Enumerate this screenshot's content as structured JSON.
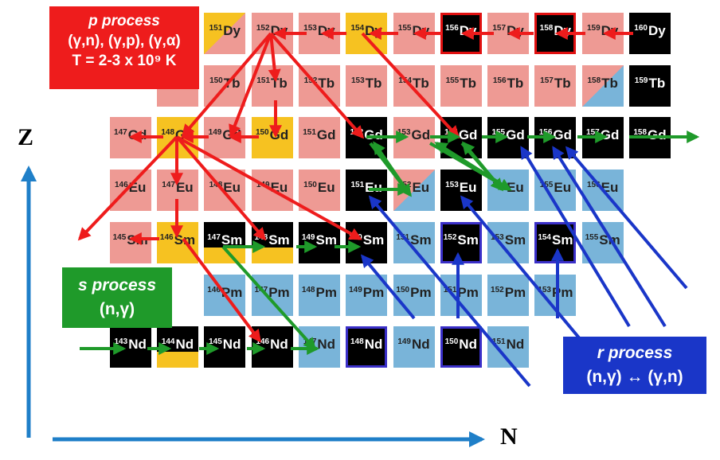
{
  "colors": {
    "pink": "#ee9a94",
    "yellow": "#f6c221",
    "blue": "#79b4d9",
    "black": "#000000",
    "red_arrow": "#ee1c1c",
    "green_arrow": "#1f9a2a",
    "blue_arrow": "#1a36c8",
    "axis": "#1f7fc8"
  },
  "nuclides": [
    {
      "mass": "160",
      "el": "Dy",
      "row": 0,
      "col": 10,
      "type": "black"
    },
    {
      "mass": "159",
      "el": "Dy",
      "row": 0,
      "col": 9,
      "type": "pink"
    },
    {
      "mass": "158",
      "el": "Dy",
      "row": 0,
      "col": 8,
      "type": "black",
      "outline": "red"
    },
    {
      "mass": "157",
      "el": "Dy",
      "row": 0,
      "col": 7,
      "type": "pink"
    },
    {
      "mass": "156",
      "el": "Dy",
      "row": 0,
      "col": 6,
      "type": "black",
      "outline": "red"
    },
    {
      "mass": "155",
      "el": "Dy",
      "row": 0,
      "col": 5,
      "type": "pink"
    },
    {
      "mass": "154",
      "el": "Dy",
      "row": 0,
      "col": 4,
      "type": "yellow"
    },
    {
      "mass": "153",
      "el": "Dy",
      "row": 0,
      "col": 3,
      "type": "pink"
    },
    {
      "mass": "152",
      "el": "Dy",
      "row": 0,
      "col": 2,
      "type": "pink"
    },
    {
      "mass": "151",
      "el": "Dy",
      "row": 0,
      "col": 1,
      "type": "split-yp"
    },
    {
      "mass": "159",
      "el": "Tb",
      "row": 1,
      "col": 10,
      "type": "black"
    },
    {
      "mass": "158",
      "el": "Tb",
      "row": 1,
      "col": 9,
      "type": "split-pb"
    },
    {
      "mass": "157",
      "el": "Tb",
      "row": 1,
      "col": 8,
      "type": "pink"
    },
    {
      "mass": "156",
      "el": "Tb",
      "row": 1,
      "col": 7,
      "type": "pink"
    },
    {
      "mass": "155",
      "el": "Tb",
      "row": 1,
      "col": 6,
      "type": "pink"
    },
    {
      "mass": "154",
      "el": "Tb",
      "row": 1,
      "col": 5,
      "type": "pink"
    },
    {
      "mass": "153",
      "el": "Tb",
      "row": 1,
      "col": 4,
      "type": "pink"
    },
    {
      "mass": "152",
      "el": "Tb",
      "row": 1,
      "col": 3,
      "type": "pink"
    },
    {
      "mass": "151",
      "el": "Tb",
      "row": 1,
      "col": 2,
      "type": "pink"
    },
    {
      "mass": "150",
      "el": "Tb",
      "row": 1,
      "col": 1,
      "type": "pink"
    },
    {
      "mass": "",
      "el": "",
      "row": 1,
      "col": 0,
      "type": "pink"
    },
    {
      "mass": "158",
      "el": "Gd",
      "row": 2,
      "col": 10,
      "type": "black"
    },
    {
      "mass": "157",
      "el": "Gd",
      "row": 2,
      "col": 9,
      "type": "black"
    },
    {
      "mass": "156",
      "el": "Gd",
      "row": 2,
      "col": 8,
      "type": "black"
    },
    {
      "mass": "155",
      "el": "Gd",
      "row": 2,
      "col": 7,
      "type": "black"
    },
    {
      "mass": "154",
      "el": "Gd",
      "row": 2,
      "col": 6,
      "type": "black"
    },
    {
      "mass": "153",
      "el": "Gd",
      "row": 2,
      "col": 5,
      "type": "pink"
    },
    {
      "mass": "152",
      "el": "Gd",
      "row": 2,
      "col": 4,
      "type": "black"
    },
    {
      "mass": "151",
      "el": "Gd",
      "row": 2,
      "col": 3,
      "type": "pink"
    },
    {
      "mass": "150",
      "el": "Gd",
      "row": 2,
      "col": 2,
      "type": "yellow"
    },
    {
      "mass": "149",
      "el": "Gd",
      "row": 2,
      "col": 1,
      "type": "pink"
    },
    {
      "mass": "148",
      "el": "Gd",
      "row": 2,
      "col": 0,
      "type": "yellow"
    },
    {
      "mass": "147",
      "el": "Gd",
      "row": 2,
      "col": -1,
      "type": "pink"
    },
    {
      "mass": "156",
      "el": "Eu",
      "row": 3,
      "col": 9,
      "type": "blue"
    },
    {
      "mass": "155",
      "el": "Eu",
      "row": 3,
      "col": 8,
      "type": "blue"
    },
    {
      "mass": "154",
      "el": "Eu",
      "row": 3,
      "col": 7,
      "type": "blue"
    },
    {
      "mass": "153",
      "el": "Eu",
      "row": 3,
      "col": 6,
      "type": "black"
    },
    {
      "mass": "152",
      "el": "Eu",
      "row": 3,
      "col": 5,
      "type": "split-pb"
    },
    {
      "mass": "151",
      "el": "Eu",
      "row": 3,
      "col": 4,
      "type": "black"
    },
    {
      "mass": "150",
      "el": "Eu",
      "row": 3,
      "col": 3,
      "type": "pink"
    },
    {
      "mass": "149",
      "el": "Eu",
      "row": 3,
      "col": 2,
      "type": "pink"
    },
    {
      "mass": "148",
      "el": "Eu",
      "row": 3,
      "col": 1,
      "type": "pink"
    },
    {
      "mass": "147",
      "el": "Eu",
      "row": 3,
      "col": 0,
      "type": "pink"
    },
    {
      "mass": "146",
      "el": "Eu",
      "row": 3,
      "col": -1,
      "type": "pink"
    },
    {
      "mass": "155",
      "el": "Sm",
      "row": 4,
      "col": 9,
      "type": "blue"
    },
    {
      "mass": "154",
      "el": "Sm",
      "row": 4,
      "col": 8,
      "type": "black",
      "outline": "blue"
    },
    {
      "mass": "153",
      "el": "Sm",
      "row": 4,
      "col": 7,
      "type": "blue"
    },
    {
      "mass": "152",
      "el": "Sm",
      "row": 4,
      "col": 6,
      "type": "black",
      "outline": "blue"
    },
    {
      "mass": "151",
      "el": "Sm",
      "row": 4,
      "col": 5,
      "type": "blue"
    },
    {
      "mass": "150",
      "el": "Sm",
      "row": 4,
      "col": 4,
      "type": "black"
    },
    {
      "mass": "149",
      "el": "Sm",
      "row": 4,
      "col": 3,
      "type": "black"
    },
    {
      "mass": "148",
      "el": "Sm",
      "row": 4,
      "col": 2,
      "type": "black-yellow"
    },
    {
      "mass": "147",
      "el": "Sm",
      "row": 4,
      "col": 1,
      "type": "black-yellow"
    },
    {
      "mass": "146",
      "el": "Sm",
      "row": 4,
      "col": 0,
      "type": "yellow"
    },
    {
      "mass": "145",
      "el": "Sm",
      "row": 4,
      "col": -1,
      "type": "pink"
    },
    {
      "mass": "153",
      "el": "Pm",
      "row": 5,
      "col": 8,
      "type": "blue"
    },
    {
      "mass": "152",
      "el": "Pm",
      "row": 5,
      "col": 7,
      "type": "blue"
    },
    {
      "mass": "151",
      "el": "Pm",
      "row": 5,
      "col": 6,
      "type": "blue"
    },
    {
      "mass": "150",
      "el": "Pm",
      "row": 5,
      "col": 5,
      "type": "blue"
    },
    {
      "mass": "149",
      "el": "Pm",
      "row": 5,
      "col": 4,
      "type": "blue"
    },
    {
      "mass": "148",
      "el": "Pm",
      "row": 5,
      "col": 3,
      "type": "blue"
    },
    {
      "mass": "147",
      "el": "Pm",
      "row": 5,
      "col": 2,
      "type": "blue"
    },
    {
      "mass": "146",
      "el": "Pm",
      "row": 5,
      "col": 1,
      "type": "blue"
    },
    {
      "mass": "151",
      "el": "Nd",
      "row": 6,
      "col": 7,
      "type": "blue"
    },
    {
      "mass": "150",
      "el": "Nd",
      "row": 6,
      "col": 6,
      "type": "black",
      "outline": "blue"
    },
    {
      "mass": "149",
      "el": "Nd",
      "row": 6,
      "col": 5,
      "type": "blue"
    },
    {
      "mass": "148",
      "el": "Nd",
      "row": 6,
      "col": 4,
      "type": "black",
      "outline": "blue"
    },
    {
      "mass": "147",
      "el": "Nd",
      "row": 6,
      "col": 3,
      "type": "blue"
    },
    {
      "mass": "146",
      "el": "Nd",
      "row": 6,
      "col": 2,
      "type": "black"
    },
    {
      "mass": "145",
      "el": "Nd",
      "row": 6,
      "col": 1,
      "type": "black"
    },
    {
      "mass": "144",
      "el": "Nd",
      "row": 6,
      "col": 0,
      "type": "yellow-black"
    },
    {
      "mass": "143",
      "el": "Nd",
      "row": 6,
      "col": -1,
      "type": "black"
    }
  ],
  "p_box": {
    "title": "p process",
    "line2": "(γ,n), (γ,p), (γ,α)",
    "line3": "T = 2-3 x 10⁹ K"
  },
  "s_box": {
    "title": "s process",
    "line2": "(n,γ)"
  },
  "r_box": {
    "title": "r process",
    "line2": "(n,γ) ↔ (γ,n)"
  },
  "axes": {
    "z_label": "Z",
    "n_label": "N"
  }
}
